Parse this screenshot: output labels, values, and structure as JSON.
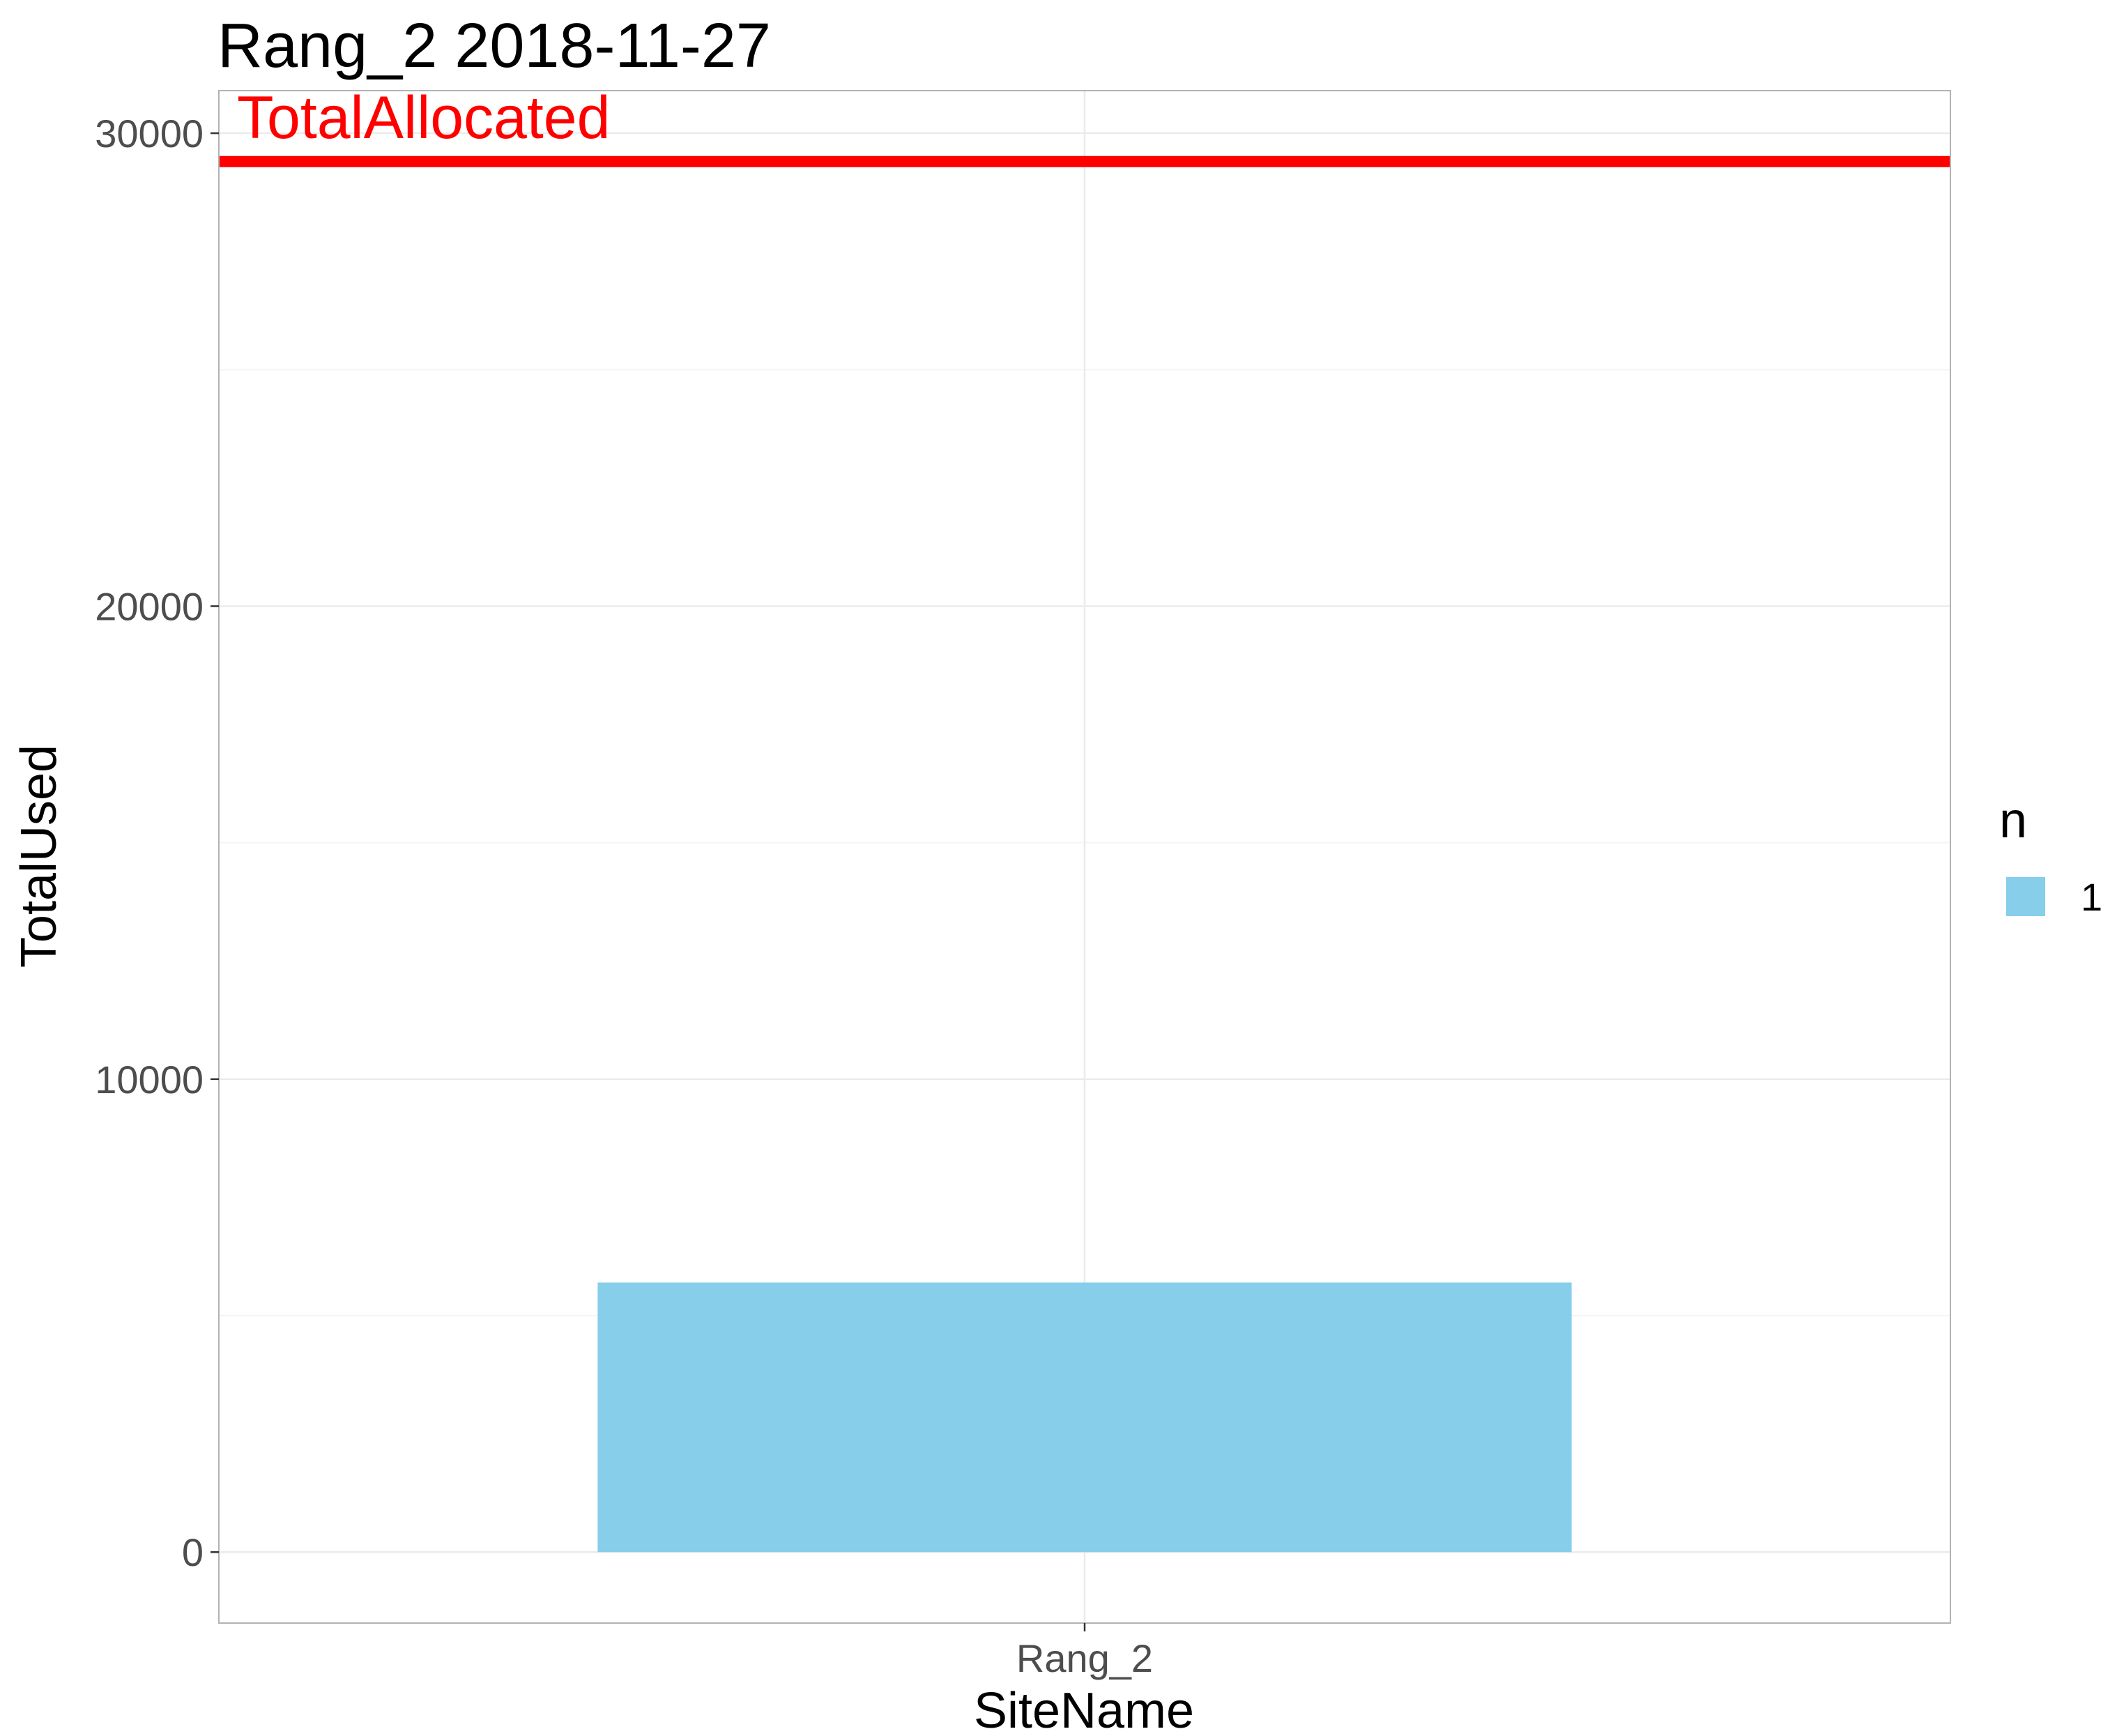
{
  "chart_data": {
    "type": "bar",
    "title": "Rang_2 2018-11-27",
    "xlabel": "SiteName",
    "ylabel": "TotalUsed",
    "categories": [
      "Rang_2"
    ],
    "series": [
      {
        "name": "1",
        "values": [
          5700
        ],
        "color": "#87CEEB"
      }
    ],
    "yticks": [
      0,
      10000,
      20000,
      30000
    ],
    "ylim": [
      -1500,
      30900
    ],
    "grid": true,
    "reference_line": {
      "label": "TotalAllocated",
      "value": 29400,
      "color": "#FF0000"
    },
    "legend": {
      "title": "n",
      "position": "right",
      "entries": [
        {
          "label": "1",
          "color": "#87CEEB"
        }
      ]
    },
    "panel_border_color": "#b3b3b3",
    "grid_color": "#ebebeb"
  }
}
